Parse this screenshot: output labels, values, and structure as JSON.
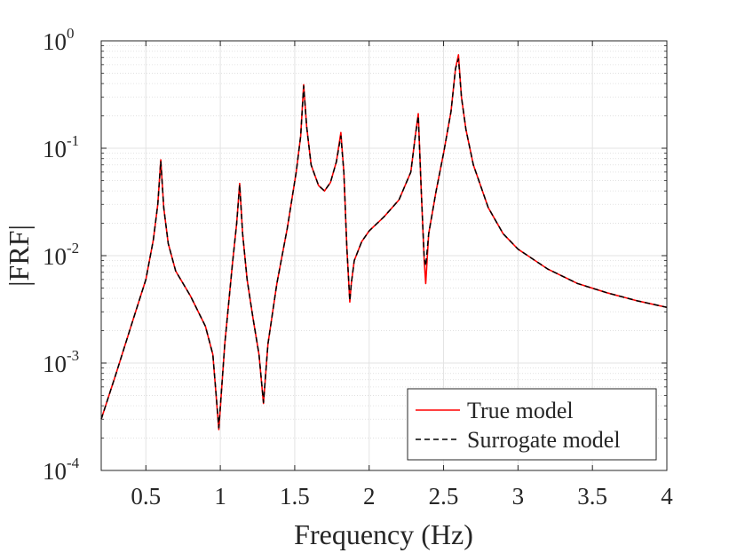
{
  "chart_data": {
    "type": "line",
    "title": "",
    "xlabel": "Frequency (Hz)",
    "ylabel": "|FRF|",
    "xlim": [
      0.2,
      4.0
    ],
    "ylim": [
      0.0001,
      1
    ],
    "yscale": "log",
    "grid": true,
    "minor_grid": true,
    "legend_position": "bottom-right",
    "x_ticks": [
      {
        "value": 0.5,
        "label": "0.5"
      },
      {
        "value": 1.0,
        "label": "1"
      },
      {
        "value": 1.5,
        "label": "1.5"
      },
      {
        "value": 2.0,
        "label": "2"
      },
      {
        "value": 2.5,
        "label": "2.5"
      },
      {
        "value": 3.0,
        "label": "3"
      },
      {
        "value": 3.5,
        "label": "3.5"
      },
      {
        "value": 4.0,
        "label": "4"
      }
    ],
    "y_ticks": [
      {
        "value": 0.0001,
        "base": "10",
        "exp": "-4"
      },
      {
        "value": 0.001,
        "base": "10",
        "exp": "-3"
      },
      {
        "value": 0.01,
        "base": "10",
        "exp": "-2"
      },
      {
        "value": 0.1,
        "base": "10",
        "exp": "-1"
      },
      {
        "value": 1,
        "base": "10",
        "exp": "0"
      }
    ],
    "x": [
      0.2,
      0.3,
      0.4,
      0.5,
      0.55,
      0.58,
      0.6,
      0.62,
      0.65,
      0.7,
      0.8,
      0.9,
      0.95,
      0.99,
      1.03,
      1.08,
      1.11,
      1.13,
      1.15,
      1.18,
      1.22,
      1.26,
      1.29,
      1.32,
      1.38,
      1.45,
      1.51,
      1.54,
      1.56,
      1.58,
      1.61,
      1.66,
      1.7,
      1.74,
      1.78,
      1.81,
      1.83,
      1.85,
      1.87,
      1.88,
      1.9,
      1.95,
      2.0,
      2.1,
      2.2,
      2.28,
      2.31,
      2.33,
      2.35,
      2.37,
      2.38,
      2.4,
      2.45,
      2.5,
      2.55,
      2.58,
      2.6,
      2.62,
      2.65,
      2.7,
      2.8,
      2.9,
      3.0,
      3.2,
      3.4,
      3.6,
      3.8,
      4.0
    ],
    "series": [
      {
        "name": "True model",
        "color": "#ff0000",
        "style": "solid",
        "values": [
          0.0003,
          0.0008,
          0.0022,
          0.006,
          0.014,
          0.03,
          0.078,
          0.028,
          0.013,
          0.0072,
          0.0042,
          0.0022,
          0.0012,
          0.00024,
          0.0015,
          0.008,
          0.02,
          0.047,
          0.016,
          0.006,
          0.0026,
          0.0012,
          0.00042,
          0.0015,
          0.0055,
          0.018,
          0.06,
          0.13,
          0.39,
          0.16,
          0.07,
          0.045,
          0.04,
          0.048,
          0.075,
          0.14,
          0.06,
          0.012,
          0.0037,
          0.0055,
          0.009,
          0.0135,
          0.017,
          0.023,
          0.033,
          0.06,
          0.13,
          0.21,
          0.04,
          0.009,
          0.0055,
          0.016,
          0.04,
          0.09,
          0.22,
          0.55,
          0.74,
          0.3,
          0.15,
          0.07,
          0.028,
          0.016,
          0.0115,
          0.0075,
          0.0055,
          0.0045,
          0.0038,
          0.0033
        ]
      },
      {
        "name": "Surrogate model",
        "color": "#000000",
        "style": "dashed",
        "values": [
          0.0003,
          0.0008,
          0.0022,
          0.006,
          0.014,
          0.03,
          0.076,
          0.028,
          0.013,
          0.0072,
          0.0042,
          0.0022,
          0.0012,
          0.00025,
          0.0015,
          0.008,
          0.02,
          0.046,
          0.016,
          0.006,
          0.0026,
          0.0012,
          0.00043,
          0.0015,
          0.0055,
          0.018,
          0.06,
          0.13,
          0.38,
          0.16,
          0.07,
          0.045,
          0.04,
          0.048,
          0.075,
          0.13,
          0.06,
          0.012,
          0.0038,
          0.0055,
          0.009,
          0.0135,
          0.017,
          0.023,
          0.033,
          0.06,
          0.13,
          0.2,
          0.04,
          0.0095,
          0.008,
          0.016,
          0.04,
          0.09,
          0.22,
          0.55,
          0.68,
          0.3,
          0.15,
          0.07,
          0.028,
          0.016,
          0.0115,
          0.0075,
          0.0055,
          0.0045,
          0.0038,
          0.0033
        ]
      }
    ]
  }
}
